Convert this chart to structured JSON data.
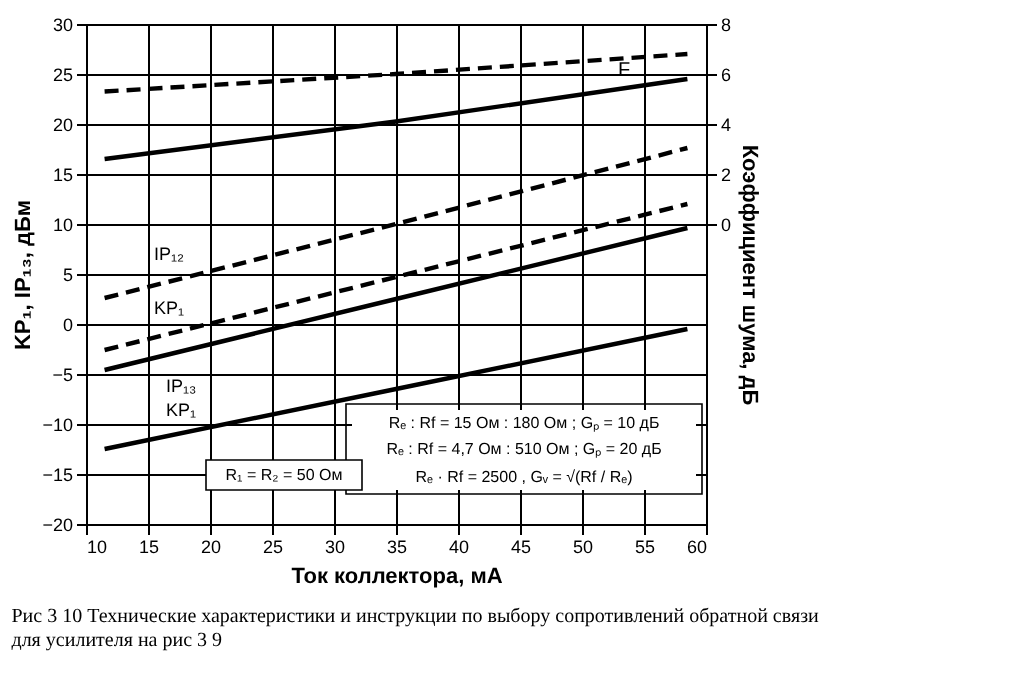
{
  "chart_data": {
    "type": "line",
    "title": "Рис 3 10 Технические характеристики и инструкции по выбору сопротивлений обратной связи для усилителя на рис 3 9",
    "xlabel": "Ток коллектора, мА",
    "ylabel": "KP₁, IP₁₃, дБм",
    "y2label": "Коэффициент шума, дБ",
    "xlim": [
      10,
      60
    ],
    "xticks": [
      10,
      15,
      20,
      25,
      30,
      35,
      40,
      45,
      50,
      55,
      60
    ],
    "ylim": [
      -20,
      30
    ],
    "yticks": [
      -20,
      -15,
      -10,
      -5,
      0,
      5,
      10,
      15,
      20,
      25,
      30
    ],
    "y2lim": [
      -12,
      8
    ],
    "y2ticks": [
      0,
      2,
      4,
      6,
      8
    ],
    "grid": true,
    "series": [
      {
        "color": "#000000",
        "line_style": "dashed",
        "axis": "y2",
        "x": [
          11.5,
          35,
          58.5
        ],
        "values": [
          5.3,
          6.0,
          6.8
        ]
      },
      {
        "color": "#000000",
        "line_style": "solid",
        "axis": "y2",
        "x": [
          11.5,
          35,
          58.5
        ],
        "values": [
          2.6,
          4.1,
          5.8
        ]
      },
      {
        "color": "#000000",
        "line_style": "dashed",
        "x": [
          11.5,
          35,
          58.5
        ],
        "values": [
          2.6,
          10,
          17.6
        ]
      },
      {
        "color": "#000000",
        "line_style": "dashed",
        "x": [
          11.5,
          35,
          58.5
        ],
        "values": [
          -2.6,
          4.7,
          12
        ]
      },
      {
        "color": "#000000",
        "line_style": "solid",
        "x": [
          11.5,
          35,
          58.5
        ],
        "values": [
          -4.6,
          2.5,
          9.6
        ]
      },
      {
        "color": "#000000",
        "line_style": "solid",
        "x": [
          11.5,
          35,
          58.5
        ],
        "values": [
          -12.5,
          -6.5,
          -0.5
        ]
      }
    ],
    "annotations": [
      "F",
      "IP₁₂",
      "KP₁",
      "IP₁₃",
      "KP₁",
      "Rₑ : Rf = 15 Ом : 180 Ом ; Gₚ = 10 дБ",
      "Rₑ : Rf = 4,7 Ом : 510 Ом ; Gₚ = 20 дБ",
      "Rₑ · Rf = 2500 , Gᵥ = √(Rf / Rₑ)",
      "R₁ = R₂ = 50 Ом"
    ]
  }
}
